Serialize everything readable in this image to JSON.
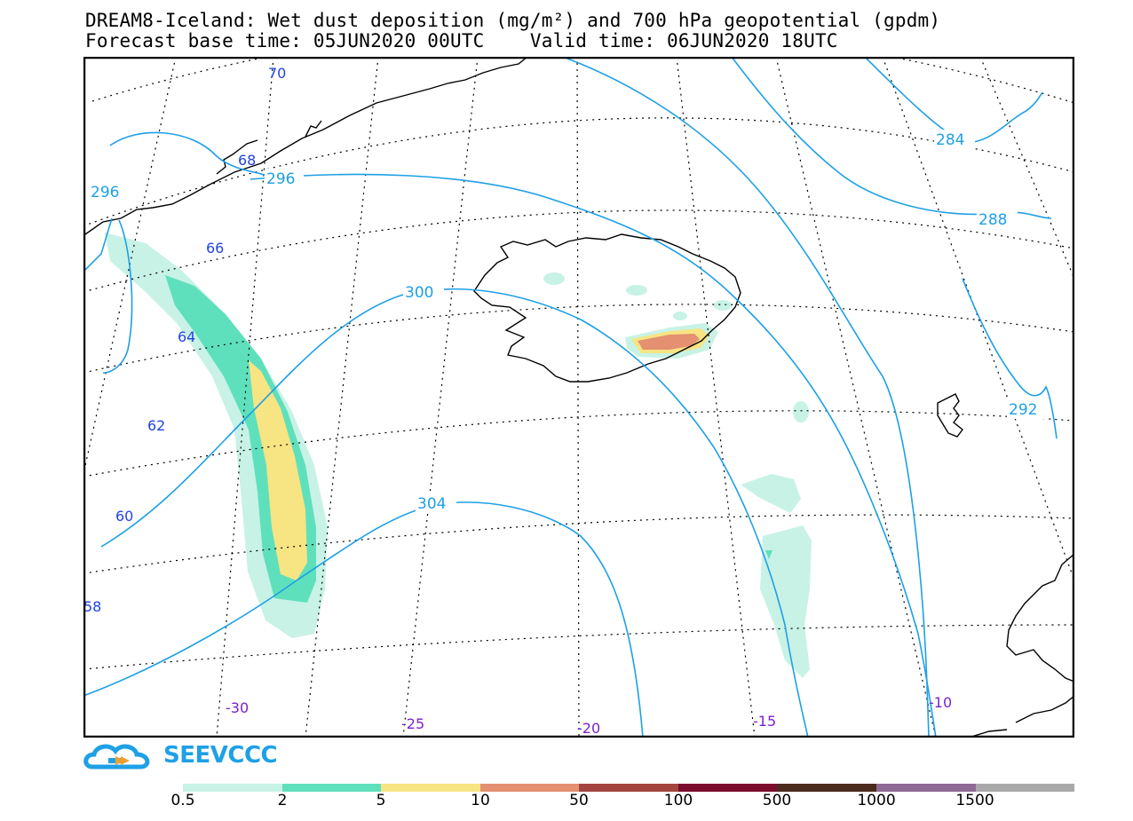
{
  "title": {
    "line1": "DREAM8-Iceland: Wet dust deposition (mg/m²) and 700 hPa geopotential (gpdm)",
    "line2": "Forecast base time: 05JUN2020 00UTC    Valid time: 06JUN2020 18UTC"
  },
  "map": {
    "lat_labels": [
      "70",
      "68",
      "66",
      "64",
      "62",
      "60",
      "58"
    ],
    "lon_labels": [
      "-30",
      "-25",
      "-20",
      "-15",
      "-10"
    ],
    "geopotential_labels": [
      "284",
      "288",
      "292",
      "296",
      "296",
      "300",
      "304"
    ],
    "colors": {
      "geopotential": "#1ea0e6",
      "lat_label": "#2244dd",
      "lon_label": "#7a22cc"
    }
  },
  "logo": {
    "text": "SEEVCCC"
  },
  "colorbar": {
    "labels": [
      "0.5",
      "2",
      "5",
      "10",
      "50",
      "100",
      "500",
      "1000",
      "1500"
    ],
    "colors": [
      "#c8f2e6",
      "#5fe0bc",
      "#f7e483",
      "#e49071",
      "#a3453e",
      "#7a0c2e",
      "#4a2a1c",
      "#8f6a95",
      "#a9a9a9"
    ]
  }
}
